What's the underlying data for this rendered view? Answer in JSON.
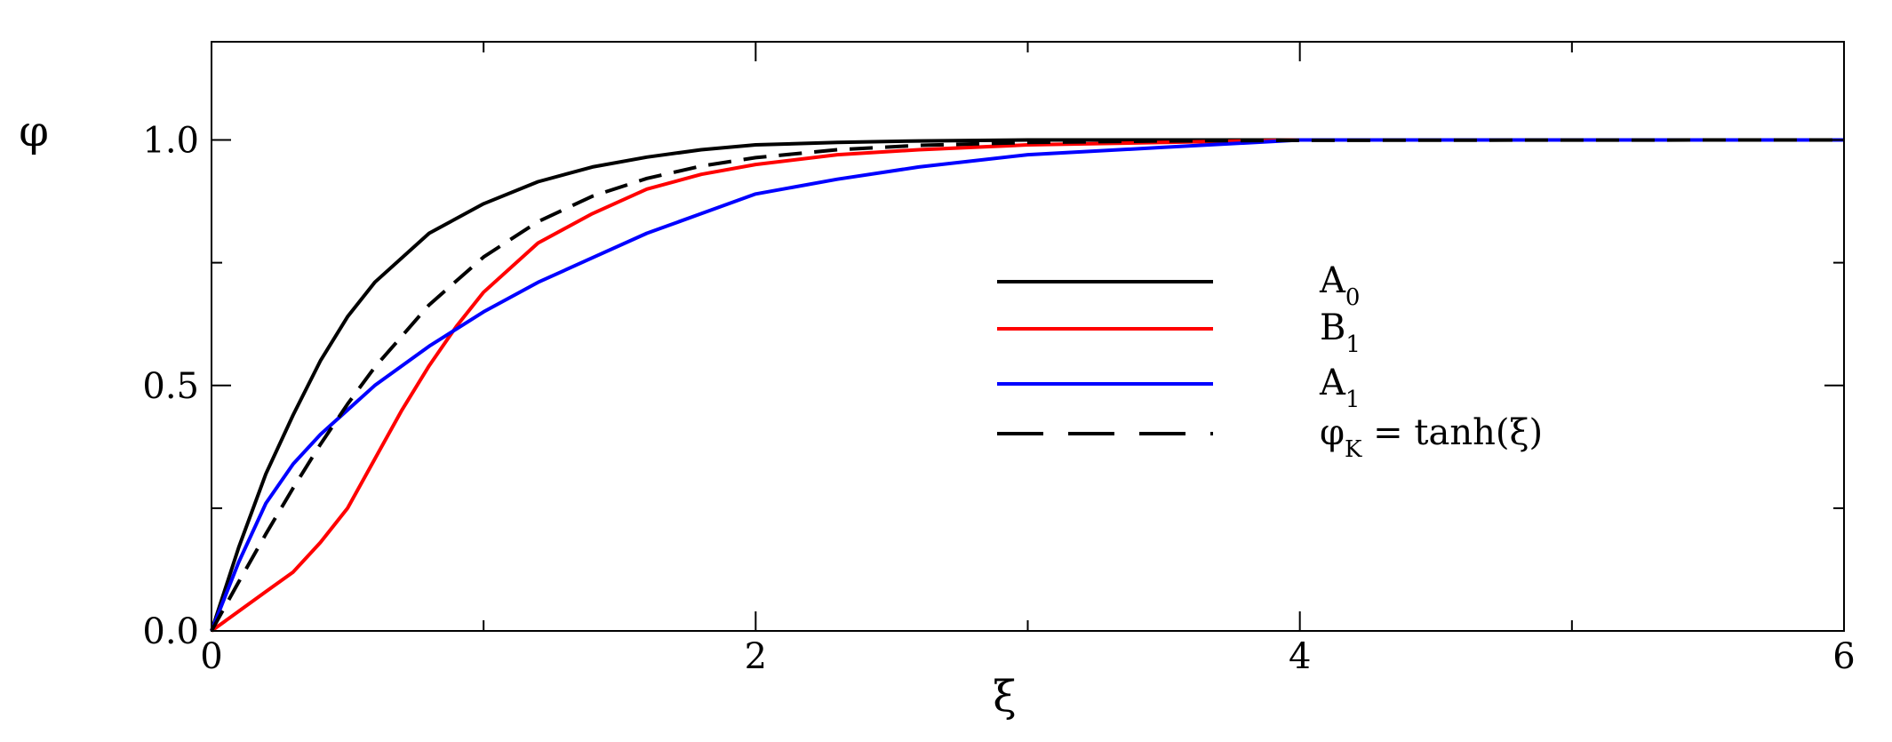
{
  "chart_data": {
    "type": "line",
    "xlabel": "ξ",
    "ylabel": "φ",
    "xlim": [
      0,
      6
    ],
    "ylim": [
      0,
      1.2
    ],
    "x_ticks": [
      {
        "value": 0,
        "label": "0"
      },
      {
        "value": 2,
        "label": "2"
      },
      {
        "value": 4,
        "label": "4"
      },
      {
        "value": 6,
        "label": "6"
      }
    ],
    "y_ticks": [
      {
        "value": 0,
        "label": "0.0"
      },
      {
        "value": 0.5,
        "label": "0.5"
      },
      {
        "value": 1.0,
        "label": "1.0"
      }
    ],
    "x_minor_ticks": [
      1,
      3,
      5
    ],
    "y_minor_ticks": [
      0.25,
      0.75
    ],
    "grid": false,
    "legend_position": "center-right",
    "series": [
      {
        "name": "A0",
        "legend_main": "A",
        "legend_sub": "0",
        "color": "#000000",
        "dash": "solid",
        "x": [
          0,
          0.1,
          0.2,
          0.3,
          0.4,
          0.5,
          0.6,
          0.8,
          1.0,
          1.2,
          1.4,
          1.6,
          1.8,
          2.0,
          2.3,
          2.6,
          3.0,
          3.5,
          4.0,
          5.0,
          6.0
        ],
        "y": [
          0,
          0.17,
          0.32,
          0.44,
          0.55,
          0.64,
          0.71,
          0.81,
          0.87,
          0.915,
          0.945,
          0.965,
          0.98,
          0.99,
          0.995,
          0.998,
          1.0,
          1.0,
          1.0,
          1.0,
          1.0
        ]
      },
      {
        "name": "B1",
        "legend_main": "B",
        "legend_sub": "1",
        "color": "#ff0000",
        "dash": "solid",
        "x": [
          0,
          0.1,
          0.2,
          0.3,
          0.4,
          0.5,
          0.6,
          0.7,
          0.8,
          0.9,
          1.0,
          1.2,
          1.4,
          1.6,
          1.8,
          2.0,
          2.3,
          2.6,
          3.0,
          3.5,
          4.0,
          5.0,
          6.0
        ],
        "y": [
          0,
          0.04,
          0.08,
          0.12,
          0.18,
          0.25,
          0.35,
          0.45,
          0.54,
          0.62,
          0.69,
          0.79,
          0.85,
          0.9,
          0.93,
          0.95,
          0.97,
          0.98,
          0.99,
          0.995,
          1.0,
          1.0,
          1.0
        ]
      },
      {
        "name": "A1",
        "legend_main": "A",
        "legend_sub": "1",
        "color": "#0000ff",
        "dash": "solid",
        "x": [
          0,
          0.1,
          0.2,
          0.3,
          0.4,
          0.5,
          0.6,
          0.8,
          1.0,
          1.2,
          1.4,
          1.6,
          1.8,
          2.0,
          2.3,
          2.6,
          3.0,
          3.5,
          4.0,
          5.0,
          6.0
        ],
        "y": [
          0,
          0.14,
          0.26,
          0.34,
          0.4,
          0.45,
          0.5,
          0.58,
          0.65,
          0.71,
          0.76,
          0.81,
          0.85,
          0.89,
          0.92,
          0.945,
          0.97,
          0.985,
          1.0,
          1.0,
          1.0
        ]
      },
      {
        "name": "φK = tanh(ξ)",
        "legend_main": "φ",
        "legend_sub": "K",
        "legend_tail": " = tanh(ξ)",
        "color": "#000000",
        "dash": "dashed",
        "x": [
          0,
          0.1,
          0.2,
          0.3,
          0.4,
          0.5,
          0.6,
          0.8,
          1.0,
          1.2,
          1.4,
          1.6,
          1.8,
          2.0,
          2.3,
          2.6,
          3.0,
          3.5,
          4.0,
          5.0,
          6.0
        ],
        "y": [
          0,
          0.0997,
          0.1974,
          0.2913,
          0.3799,
          0.4621,
          0.537,
          0.664,
          0.7616,
          0.8337,
          0.8854,
          0.9217,
          0.9468,
          0.964,
          0.98,
          0.989,
          0.995,
          0.998,
          0.9993,
          0.9999,
          1.0
        ]
      }
    ]
  }
}
